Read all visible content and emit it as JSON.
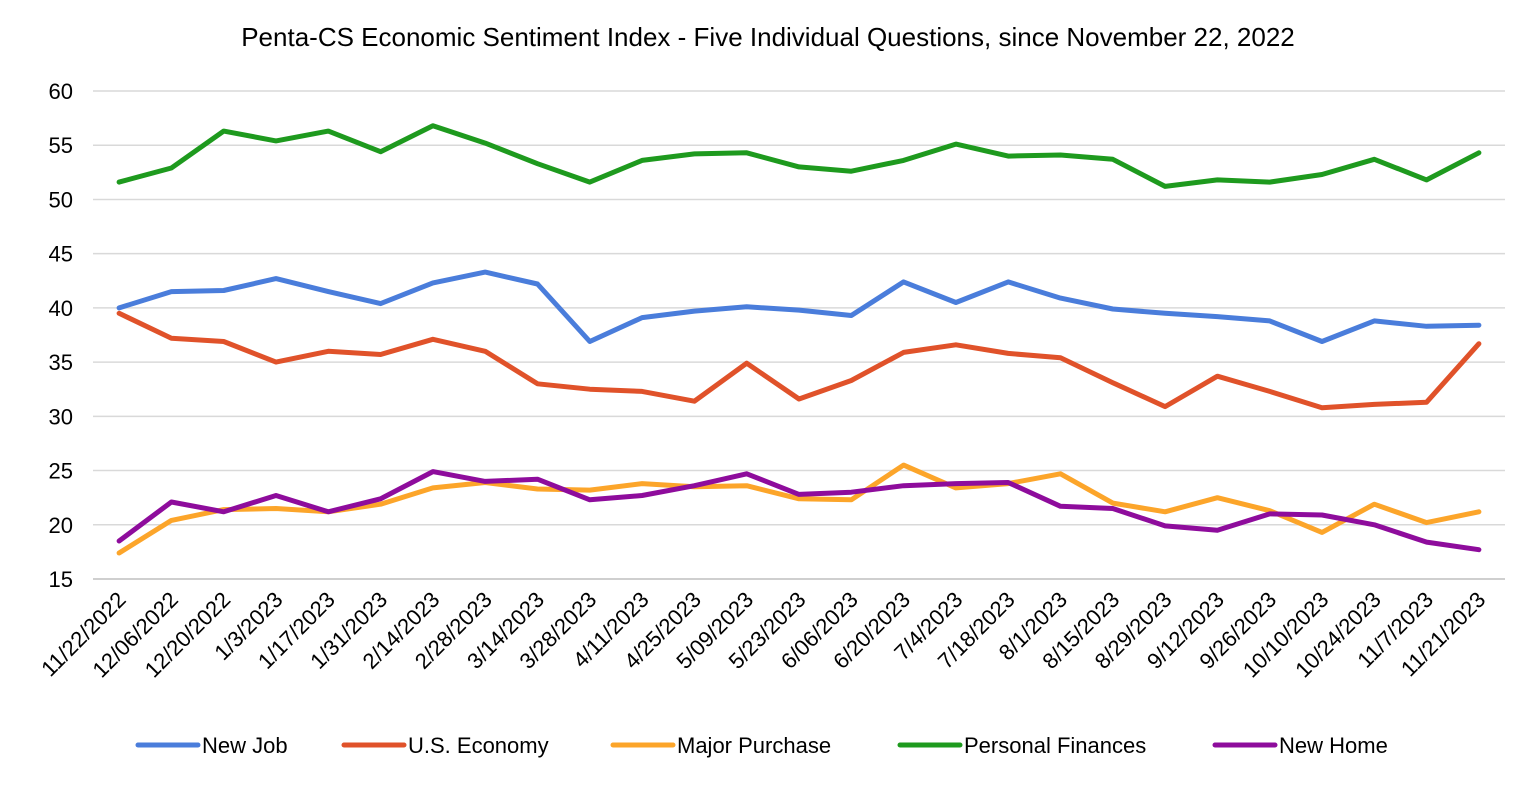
{
  "chart_data": {
    "type": "line",
    "title": "Penta-CS Economic Sentiment Index - Five Individual Questions, since November 22, 2022",
    "xlabel": "",
    "ylabel": "",
    "ylim": [
      15,
      60
    ],
    "yticks": [
      15,
      20,
      25,
      30,
      35,
      40,
      45,
      50,
      55,
      60
    ],
    "grid": true,
    "legend_position": "bottom",
    "categories": [
      "11/22/2022",
      "12/06/2022",
      "12/20/2022",
      "1/3/2023",
      "1/17/2023",
      "1/31/2023",
      "2/14/2023",
      "2/28/2023",
      "3/14/2023",
      "3/28/2023",
      "4/11/2023",
      "4/25/2023",
      "5/09/2023",
      "5/23/2023",
      "6/06/2023",
      "6/20/2023",
      "7/4/2023",
      "7/18/2023",
      "8/1/2023",
      "8/15/2023",
      "8/29/2023",
      "9/12/2023",
      "9/26/2023",
      "10/10/2023",
      "10/24/2023",
      "11/7/2023",
      "11/21/2023"
    ],
    "series": [
      {
        "name": "New Job",
        "color": "#4A7DDB",
        "values": [
          40.0,
          41.5,
          41.6,
          42.7,
          41.5,
          40.4,
          42.3,
          43.3,
          42.2,
          36.9,
          39.1,
          39.7,
          40.1,
          39.8,
          39.3,
          42.4,
          40.5,
          42.4,
          40.9,
          39.9,
          39.5,
          39.2,
          38.8,
          36.9,
          38.8,
          38.3,
          38.4
        ]
      },
      {
        "name": "U.S. Economy",
        "color": "#E0522A",
        "values": [
          39.5,
          37.2,
          36.9,
          35.0,
          36.0,
          35.7,
          37.1,
          36.0,
          33.0,
          32.5,
          32.3,
          31.4,
          34.9,
          31.6,
          33.3,
          35.9,
          36.6,
          35.8,
          35.4,
          33.1,
          30.9,
          33.7,
          32.3,
          30.8,
          31.1,
          31.3,
          36.7
        ]
      },
      {
        "name": "Major Purchase",
        "color": "#FCA52A",
        "values": [
          17.4,
          20.4,
          21.4,
          21.5,
          21.2,
          21.9,
          23.4,
          23.9,
          23.3,
          23.2,
          23.8,
          23.5,
          23.6,
          22.4,
          22.3,
          25.5,
          23.4,
          23.8,
          24.7,
          22.0,
          21.2,
          22.5,
          21.3,
          19.3,
          21.9,
          20.2,
          21.2
        ]
      },
      {
        "name": "Personal Finances",
        "color": "#1E9A1E",
        "values": [
          51.6,
          52.9,
          56.3,
          55.4,
          56.3,
          54.4,
          56.8,
          55.2,
          53.3,
          51.6,
          53.6,
          54.2,
          54.3,
          53.0,
          52.6,
          53.6,
          55.1,
          54.0,
          54.1,
          53.7,
          51.2,
          51.8,
          51.6,
          52.3,
          53.7,
          51.8,
          54.3
        ]
      },
      {
        "name": "New Home",
        "color": "#8E0C9C",
        "values": [
          18.5,
          22.1,
          21.2,
          22.7,
          21.2,
          22.4,
          24.9,
          24.0,
          24.2,
          22.3,
          22.7,
          23.6,
          24.7,
          22.8,
          23.0,
          23.6,
          23.8,
          23.9,
          21.7,
          21.5,
          19.9,
          19.5,
          21.0,
          20.9,
          20.0,
          18.4,
          17.7
        ]
      }
    ]
  }
}
